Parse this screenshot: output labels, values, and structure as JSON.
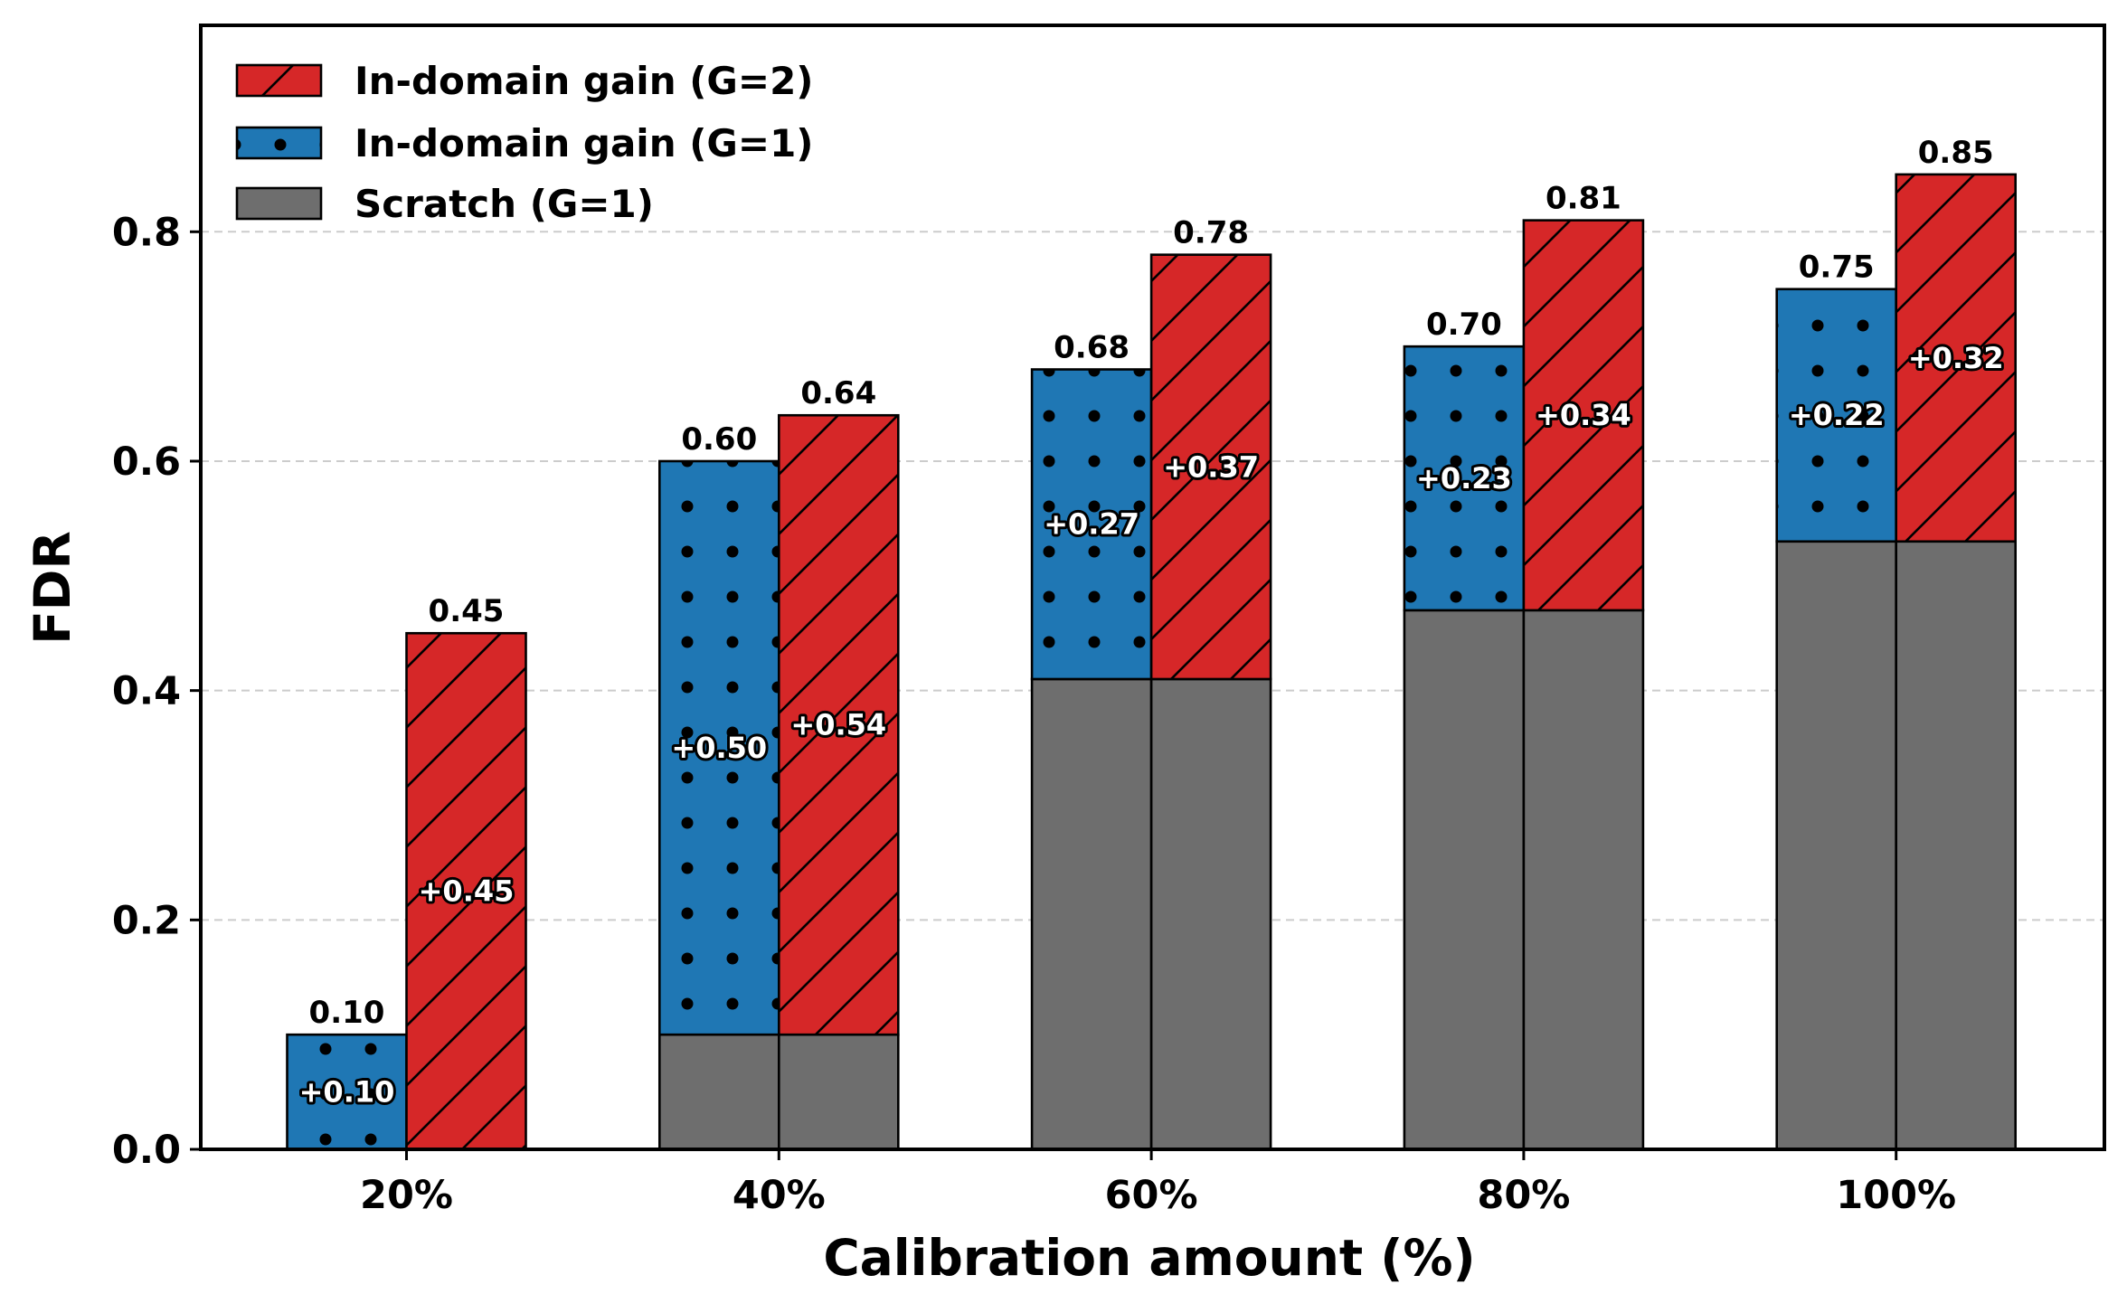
{
  "chart_data": {
    "type": "bar",
    "subtype": "grouped-stacked",
    "xlabel": "Calibration amount (%)",
    "ylabel": "FDR",
    "categories": [
      "20%",
      "40%",
      "60%",
      "80%",
      "100%"
    ],
    "ylim": [
      0,
      0.98
    ],
    "yticks": [
      "0.0",
      "0.2",
      "0.4",
      "0.6",
      "0.8"
    ],
    "ytick_values": [
      0,
      0.2,
      0.4,
      0.6,
      0.8
    ],
    "grid": "horizontal dashed",
    "legend_position": "top-left",
    "series": [
      {
        "name": "In-domain gain (G=2)",
        "color": "#d62728",
        "hatch": "diagonal",
        "totals": [
          0.45,
          0.64,
          0.78,
          0.81,
          0.85
        ],
        "gains": [
          0.45,
          0.54,
          0.37,
          0.34,
          0.32
        ]
      },
      {
        "name": "In-domain gain (G=1)",
        "color": "#1f77b4",
        "hatch": "dots",
        "totals": [
          0.1,
          0.6,
          0.68,
          0.7,
          0.75
        ],
        "gains": [
          0.1,
          0.5,
          0.27,
          0.23,
          0.22
        ]
      },
      {
        "name": "Scratch (G=1)",
        "color": "#6e6e6e",
        "hatch": "none",
        "values": [
          0.0,
          0.1,
          0.41,
          0.47,
          0.53
        ]
      }
    ],
    "top_labels": {
      "g1": [
        "0.10",
        "0.60",
        "0.68",
        "0.70",
        "0.75"
      ],
      "g2": [
        "0.45",
        "0.64",
        "0.78",
        "0.81",
        "0.85"
      ]
    },
    "gain_labels": {
      "g1": [
        "+0.10",
        "+0.50",
        "+0.27",
        "+0.23",
        "+0.22"
      ],
      "g2": [
        "+0.45",
        "+0.54",
        "+0.37",
        "+0.34",
        "+0.32"
      ]
    }
  }
}
